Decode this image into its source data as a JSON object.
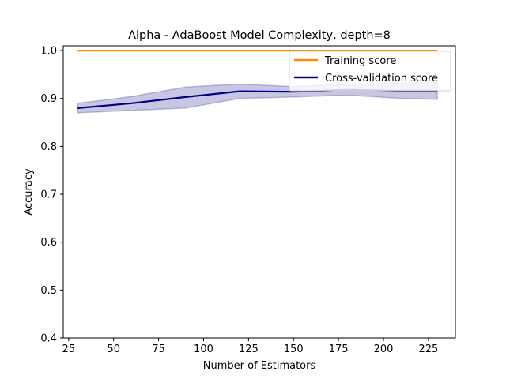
{
  "chart_data": {
    "type": "line",
    "title": "Alpha - AdaBoost Model Complexity, depth=8",
    "xlabel": "Number of Estimators",
    "ylabel": "Accuracy",
    "xlim": [
      22,
      240
    ],
    "ylim": [
      0.4,
      1.01
    ],
    "x_ticks": [
      25,
      50,
      75,
      100,
      125,
      150,
      175,
      200,
      225
    ],
    "y_ticks": [
      0.4,
      0.5,
      0.6,
      0.7,
      0.8,
      0.9,
      1.0
    ],
    "x_tick_labels": [
      "25",
      "50",
      "75",
      "100",
      "125",
      "150",
      "175",
      "200",
      "225"
    ],
    "y_tick_labels": [
      "0.4",
      "0.5",
      "0.6",
      "0.7",
      "0.8",
      "0.9",
      "1.0"
    ],
    "grid": false,
    "legend_position": "top-right",
    "x": [
      30,
      60,
      90,
      120,
      150,
      180,
      210,
      230
    ],
    "series": [
      {
        "name": "Training score",
        "color": "#ff8c00",
        "values": [
          1.0,
          1.0,
          1.0,
          1.0,
          1.0,
          1.0,
          1.0,
          1.0
        ]
      },
      {
        "name": "Cross-validation score",
        "color": "#000080",
        "values": [
          0.88,
          0.89,
          0.903,
          0.915,
          0.914,
          0.918,
          0.916,
          0.916
        ],
        "band_upper": [
          0.89,
          0.904,
          0.924,
          0.93,
          0.925,
          0.93,
          0.932,
          0.934
        ],
        "band_lower": [
          0.87,
          0.875,
          0.88,
          0.9,
          0.903,
          0.907,
          0.9,
          0.898
        ],
        "band_color": "#000080"
      }
    ]
  }
}
